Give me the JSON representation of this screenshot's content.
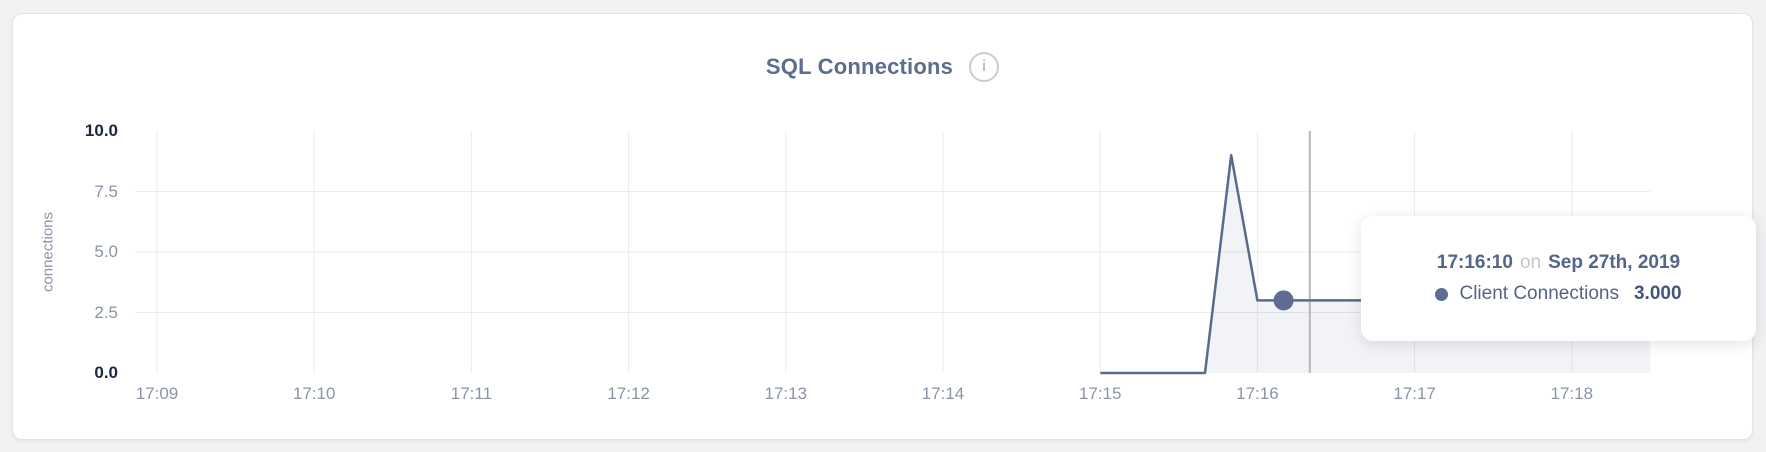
{
  "header": {
    "title": "SQL Connections",
    "info_icon": "i"
  },
  "chart_data": {
    "type": "area",
    "title": "SQL Connections",
    "xlabel": "",
    "ylabel": "connections",
    "ylim": [
      0,
      10
    ],
    "grid": true,
    "legend_position": "none",
    "x_ticks": [
      "17:09",
      "17:10",
      "17:11",
      "17:12",
      "17:13",
      "17:14",
      "17:15",
      "17:16",
      "17:17",
      "17:18"
    ],
    "y_ticks": [
      {
        "label": "10.0",
        "value": 10,
        "strong": true,
        "grid": false
      },
      {
        "label": "7.5",
        "value": 7.5,
        "strong": false,
        "grid": true
      },
      {
        "label": "5.0",
        "value": 5,
        "strong": false,
        "grid": true
      },
      {
        "label": "2.5",
        "value": 2.5,
        "strong": false,
        "grid": true
      },
      {
        "label": "0.0",
        "value": 0,
        "strong": true,
        "grid": false
      }
    ],
    "series": [
      {
        "name": "Client Connections",
        "points": [
          [
            "17:15:00",
            0
          ],
          [
            "17:15:10",
            0
          ],
          [
            "17:15:20",
            0
          ],
          [
            "17:15:30",
            0
          ],
          [
            "17:15:40",
            0
          ],
          [
            "17:15:50",
            9
          ],
          [
            "17:16:00",
            3
          ],
          [
            "17:16:10",
            3
          ],
          [
            "17:16:20",
            3
          ],
          [
            "17:16:30",
            3
          ],
          [
            "17:16:40",
            3
          ],
          [
            "17:16:50",
            3
          ],
          [
            "17:17:00",
            3
          ],
          [
            "17:17:10",
            3
          ],
          [
            "17:17:20",
            3
          ],
          [
            "17:17:30",
            3
          ],
          [
            "17:17:40",
            3
          ],
          [
            "17:17:50",
            3
          ],
          [
            "17:18:00",
            3
          ],
          [
            "17:18:10",
            3
          ],
          [
            "17:18:20",
            3
          ],
          [
            "17:18:30",
            3
          ]
        ]
      }
    ],
    "hover": {
      "time": "17:16:10",
      "on_word": "on",
      "date": "Sep 27th, 2019",
      "series": "Client Connections",
      "value": "3.000",
      "crosshair_time": "17:16:20"
    },
    "colors": {
      "line": "#596a8c",
      "fill": "rgba(89,106,140,0.08)",
      "grid": "#ebebed",
      "crosshair": "#b5b8c0",
      "dot": "#5d6c90",
      "tick_strong": "#1b2742",
      "tick_muted": "#8a94a8"
    }
  }
}
